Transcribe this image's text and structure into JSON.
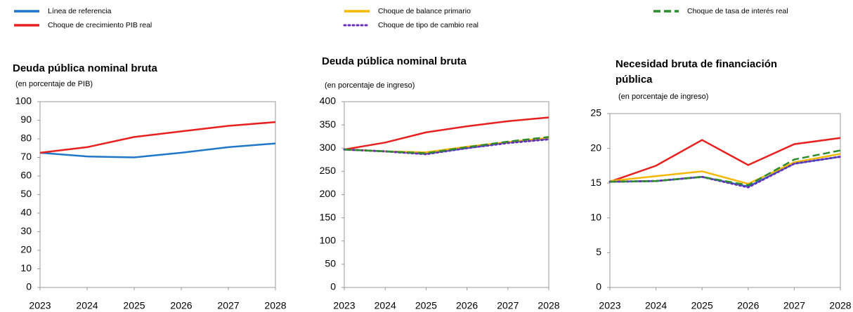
{
  "chart_data": [
    {
      "type": "line",
      "title": "Deuda pública nominal bruta",
      "subtitle": "(en porcentaje de PIB)",
      "categories": [
        "2023",
        "2024",
        "2025",
        "2026",
        "2027",
        "2028"
      ],
      "ylim": [
        0,
        100
      ],
      "yticks": [
        0,
        10,
        20,
        30,
        40,
        50,
        60,
        70,
        80,
        90,
        100
      ],
      "series": [
        {
          "name": "Línea de referencia",
          "color": "#1f77c9",
          "values": [
            72.5,
            70.5,
            70,
            72.5,
            75.5,
            77.5
          ]
        },
        {
          "name": "Choque de crecimiento PIB real",
          "color": "#e8201f",
          "values": [
            72.5,
            75.5,
            81,
            84,
            87,
            89
          ]
        }
      ]
    },
    {
      "type": "line",
      "title": "Deuda pública nominal bruta",
      "subtitle": "(en porcentaje de ingreso)",
      "categories": [
        "2023",
        "2024",
        "2025",
        "2026",
        "2027",
        "2028"
      ],
      "ylim": [
        0,
        400
      ],
      "yticks": [
        0,
        50,
        100,
        150,
        200,
        250,
        300,
        350,
        400
      ],
      "series": [
        {
          "name": "Línea de referencia",
          "color": "#1f77c9",
          "values": [
            297,
            293,
            288,
            300,
            312,
            320
          ]
        },
        {
          "name": "Choque de crecimiento PIB real",
          "color": "#e8201f",
          "values": [
            297,
            312,
            334,
            347,
            358,
            366
          ]
        },
        {
          "name": "Choque de balance primario",
          "color": "#f5b800",
          "values": [
            297,
            293,
            291,
            303,
            313,
            322
          ]
        },
        {
          "name": "Choque de tipo de cambio real",
          "color": "#6a2fb8",
          "style": "dotted",
          "values": [
            297,
            293,
            287,
            300,
            311,
            319
          ]
        },
        {
          "name": "Choque de tasa de interés real",
          "color": "#2e8b2e",
          "style": "dashed",
          "values": [
            297,
            293,
            289,
            302,
            314,
            324
          ]
        }
      ]
    },
    {
      "type": "line",
      "title": "Necesidad bruta de financiación pública",
      "subtitle": "(en porcentaje de ingreso)",
      "categories": [
        "2023",
        "2024",
        "2025",
        "2026",
        "2027",
        "2028"
      ],
      "ylim": [
        0,
        25
      ],
      "yticks": [
        0,
        5,
        10,
        15,
        20,
        25
      ],
      "series": [
        {
          "name": "Línea de referencia",
          "color": "#1f77c9",
          "values": [
            15.2,
            15.3,
            15.9,
            14.5,
            17.8,
            18.8
          ]
        },
        {
          "name": "Choque de crecimiento PIB real",
          "color": "#e8201f",
          "values": [
            15.2,
            17.5,
            21.2,
            17.6,
            20.6,
            21.5
          ]
        },
        {
          "name": "Choque de balance primario",
          "color": "#f5b800",
          "values": [
            15.3,
            16,
            16.7,
            14.9,
            18,
            19.2
          ]
        },
        {
          "name": "Choque de tipo de cambio real",
          "color": "#6a2fb8",
          "style": "dotted",
          "values": [
            15.2,
            15.3,
            15.9,
            14.4,
            17.8,
            18.8
          ]
        },
        {
          "name": "Choque de tasa de interés real",
          "color": "#2e8b2e",
          "style": "dashed",
          "values": [
            15.2,
            15.3,
            15.9,
            14.7,
            18.4,
            19.7
          ]
        }
      ]
    }
  ]
}
